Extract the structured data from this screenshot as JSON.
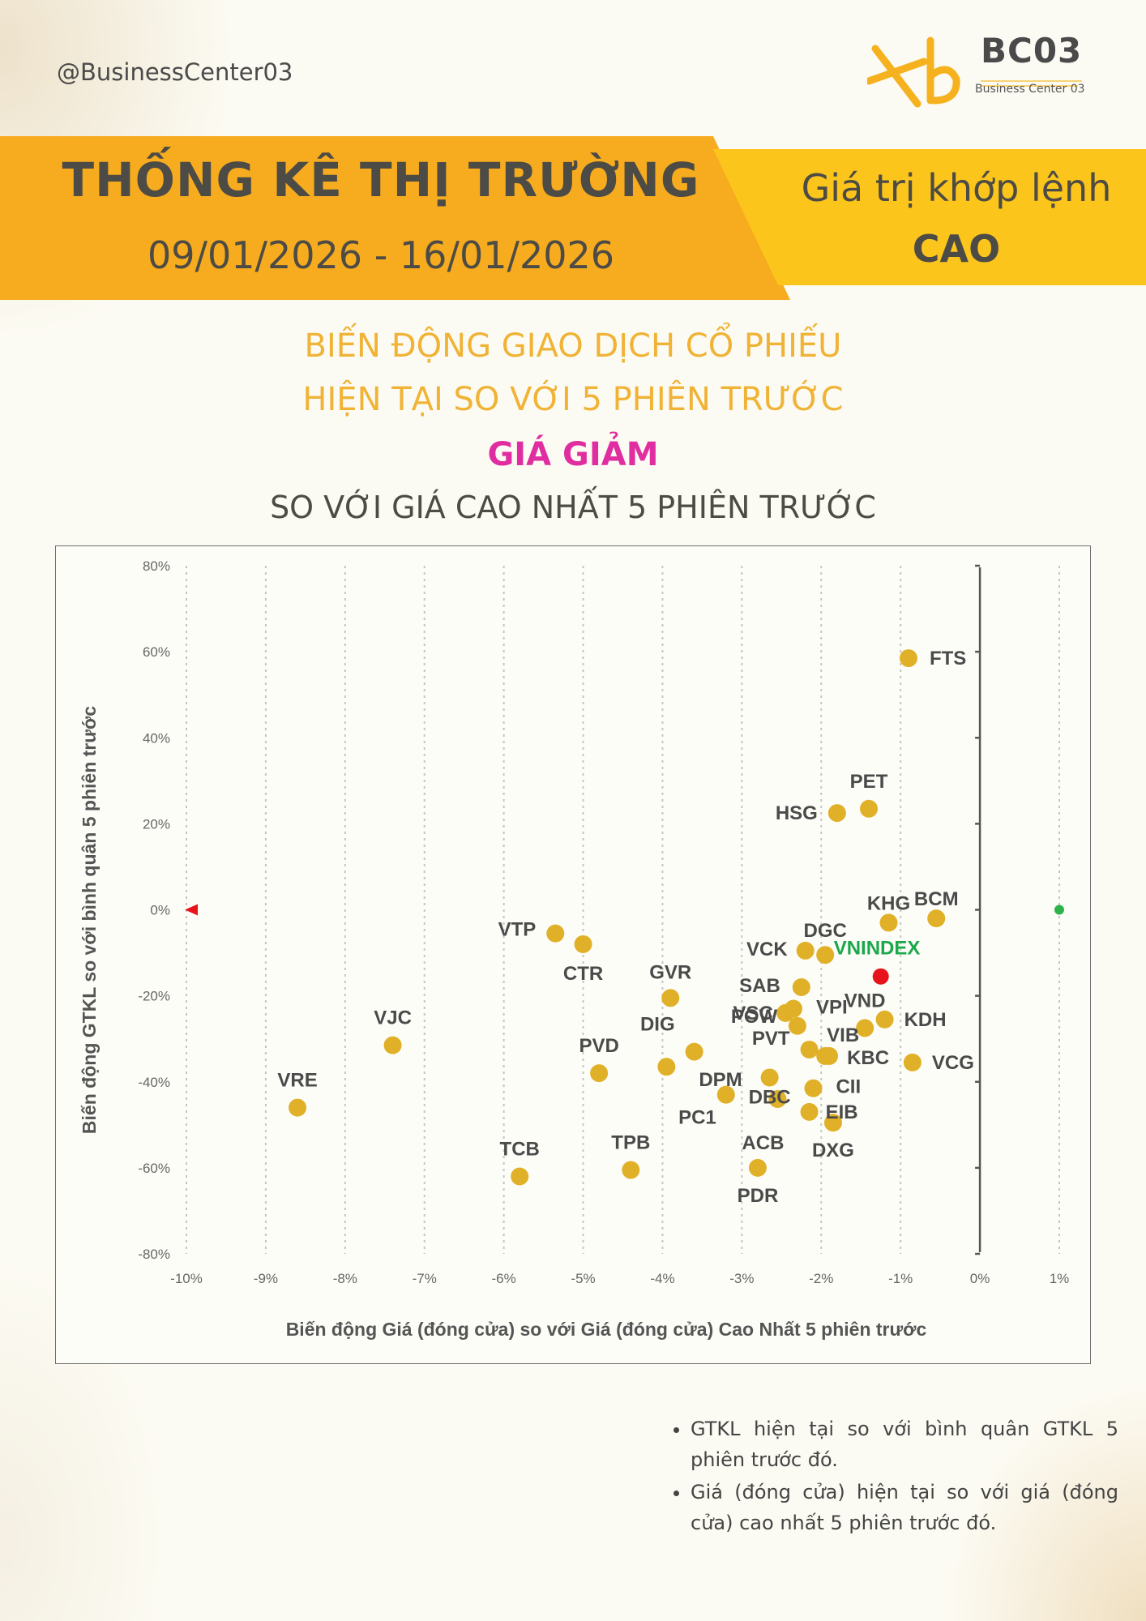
{
  "header": {
    "handle": "@BusinessCenter03",
    "logo_title": "BC03",
    "logo_subtitle": "Business Center 03"
  },
  "banner": {
    "title": "THỐNG KÊ THỊ TRƯỜNG",
    "date_range": "09/01/2026 - 16/01/2026",
    "metric_label": "Giá trị khớp lệnh",
    "metric_value": "CAO"
  },
  "subtitle": {
    "line1": "BIẾN ĐỘNG GIAO DỊCH CỔ PHIẾU",
    "line2": "HIỆN TẠI SO VỚI 5 PHIÊN TRƯỚC",
    "line3": "GIÁ GIẢM",
    "line4": "SO VỚI GIÁ CAO NHẤT 5 PHIÊN TRƯỚC"
  },
  "colors": {
    "accent_orange": "#f7ac1f",
    "accent_yellow": "#fcc51b",
    "subtitle_gold": "#f0b336",
    "highlight_magenta": "#e02ea0",
    "point": "#e0b128",
    "vnindex_point": "#e8141c",
    "vnindex_label": "#1aa84a"
  },
  "chart_data": {
    "type": "scatter",
    "xlabel": "Biến động Giá (đóng cửa) so với Giá (đóng cửa) Cao Nhất 5 phiên trước",
    "ylabel": "Biến động GTKL so với bình quân 5 phiên trước",
    "xlim": [
      -10,
      1
    ],
    "ylim": [
      -80,
      80
    ],
    "x_ticks": [
      "-10%",
      "-9%",
      "-8%",
      "-7%",
      "-6%",
      "-5%",
      "-4%",
      "-3%",
      "-2%",
      "-1%",
      "0%",
      "1%"
    ],
    "y_ticks": [
      "80%",
      "60%",
      "40%",
      "20%",
      "0%",
      "-20%",
      "-40%",
      "-60%",
      "-80%"
    ],
    "grid": "vertical dotted",
    "points": [
      {
        "label": "FTS",
        "x": -0.9,
        "y": 58.5
      },
      {
        "label": "PET",
        "x": -1.4,
        "y": 23.5
      },
      {
        "label": "HSG",
        "x": -1.8,
        "y": 22.5
      },
      {
        "label": "KHG",
        "x": -1.15,
        "y": -3
      },
      {
        "label": "BCM",
        "x": -0.55,
        "y": -2
      },
      {
        "label": "VTP",
        "x": -5.35,
        "y": -5.5
      },
      {
        "label": "CTR",
        "x": -5.0,
        "y": -8
      },
      {
        "label": "DGC",
        "x": -1.95,
        "y": -10.5
      },
      {
        "label": "VCK",
        "x": -2.2,
        "y": -9.5
      },
      {
        "label": "VNINDEX",
        "x": -1.25,
        "y": -15.5,
        "highlight": true
      },
      {
        "label": "SAB",
        "x": -2.25,
        "y": -18
      },
      {
        "label": "GVR",
        "x": -3.9,
        "y": -20.5
      },
      {
        "label": "VPI",
        "x": -2.35,
        "y": -23
      },
      {
        "label": "POW",
        "x": -2.45,
        "y": -24
      },
      {
        "label": "VND",
        "x": -1.45,
        "y": -27.5
      },
      {
        "label": "KDH",
        "x": -1.2,
        "y": -25.5
      },
      {
        "label": "VSC",
        "x": -2.3,
        "y": -27
      },
      {
        "label": "DIG",
        "x": -3.6,
        "y": -33
      },
      {
        "label": "VIB",
        "x": -1.95,
        "y": -34
      },
      {
        "label": "PVT",
        "x": -2.15,
        "y": -32.5
      },
      {
        "label": "KBC",
        "x": -1.9,
        "y": -34
      },
      {
        "label": "VCG",
        "x": -0.85,
        "y": -35.5
      },
      {
        "label": "VJC",
        "x": -7.4,
        "y": -31.5
      },
      {
        "label": "PVD",
        "x": -4.8,
        "y": -38
      },
      {
        "label": "DPM",
        "x": -3.95,
        "y": -36.5
      },
      {
        "label": "PC1",
        "x": -3.2,
        "y": -43
      },
      {
        "label": "DBC",
        "x": -2.65,
        "y": -39
      },
      {
        "label": "CII",
        "x": -2.1,
        "y": -41.5
      },
      {
        "label": "ACB",
        "x": -2.55,
        "y": -44
      },
      {
        "label": "EIB",
        "x": -2.15,
        "y": -47
      },
      {
        "label": "DXG",
        "x": -1.85,
        "y": -49.5
      },
      {
        "label": "VRE",
        "x": -8.6,
        "y": -46
      },
      {
        "label": "TCB",
        "x": -5.8,
        "y": -62
      },
      {
        "label": "TPB",
        "x": -4.4,
        "y": -60.5
      },
      {
        "label": "PDR",
        "x": -2.8,
        "y": -60
      }
    ]
  },
  "notes": [
    "GTKL hiện tại so với bình quân GTKL 5 phiên trước đó.",
    "Giá (đóng cửa) hiện tại so với giá (đóng cửa) cao nhất 5 phiên trước đó."
  ]
}
